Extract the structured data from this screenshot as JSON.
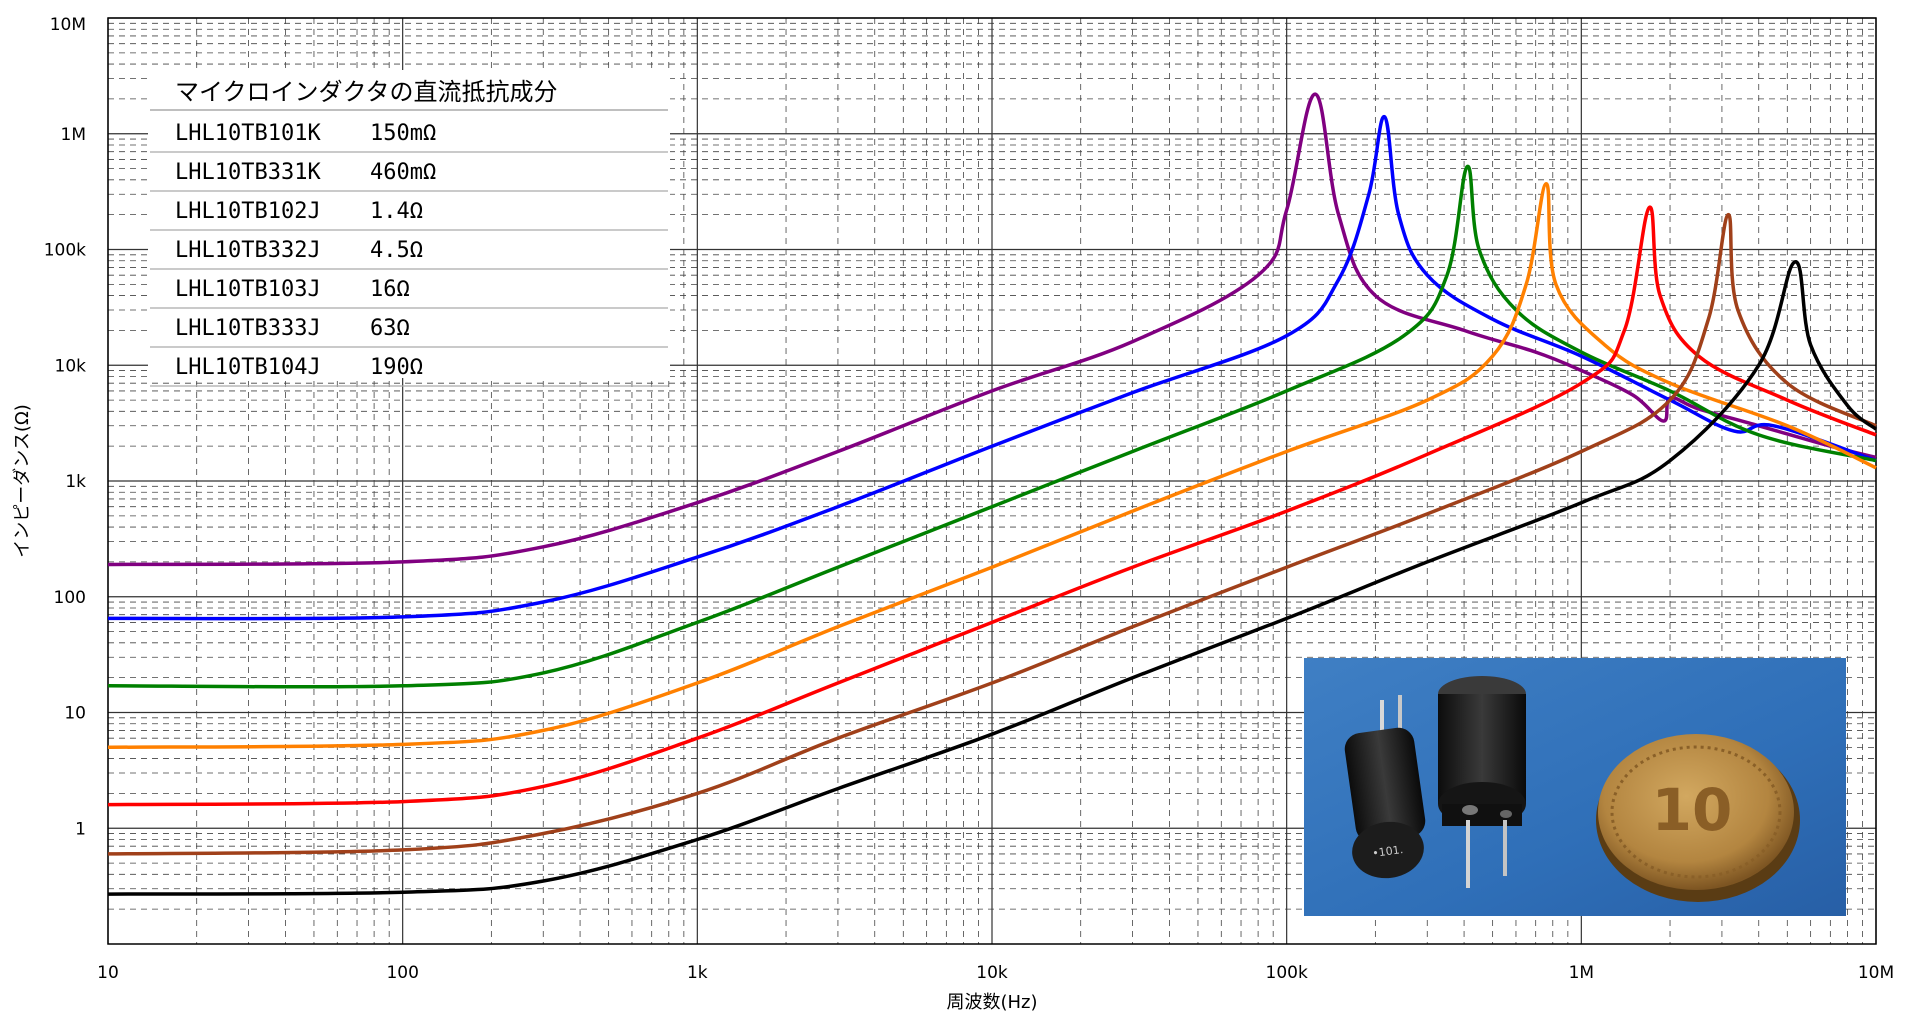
{
  "chart_data": {
    "type": "line",
    "title": "",
    "xlabel": "周波数(Hz)",
    "ylabel": "インピーダンス(Ω)",
    "x_scale": "log",
    "y_scale": "log",
    "xlim": [
      10,
      10000000
    ],
    "ylim": [
      0.1,
      10000000
    ],
    "x_ticks": [
      {
        "value": 10,
        "label": "10"
      },
      {
        "value": 100,
        "label": "100"
      },
      {
        "value": 1000,
        "label": "1k"
      },
      {
        "value": 10000,
        "label": "10k"
      },
      {
        "value": 100000,
        "label": "100k"
      },
      {
        "value": 1000000,
        "label": "1M"
      },
      {
        "value": 10000000,
        "label": "10M"
      }
    ],
    "y_ticks": [
      {
        "value": 1,
        "label": "1"
      },
      {
        "value": 10,
        "label": "10"
      },
      {
        "value": 100,
        "label": "100"
      },
      {
        "value": 1000,
        "label": "1k"
      },
      {
        "value": 10000,
        "label": "10k"
      },
      {
        "value": 100000,
        "label": "100k"
      },
      {
        "value": 1000000,
        "label": "1M"
      },
      {
        "value": 10000000,
        "label": "10M"
      }
    ],
    "grid": true,
    "legend": {
      "placement": "top-left",
      "title": "マイクロインダクタの直流抵抗成分",
      "rows": [
        {
          "part": "LHL10TB101K",
          "value": "150mΩ"
        },
        {
          "part": "LHL10TB331K",
          "value": "460mΩ"
        },
        {
          "part": "LHL10TB102J",
          "value": "1.4Ω"
        },
        {
          "part": "LHL10TB332J",
          "value": "4.5Ω"
        },
        {
          "part": "LHL10TB103J",
          "value": "16Ω"
        },
        {
          "part": "LHL10TB333J",
          "value": "63Ω"
        },
        {
          "part": "LHL10TB104J",
          "value": "190Ω"
        }
      ]
    },
    "series": [
      {
        "color": "#800080",
        "points": [
          [
            10,
            190
          ],
          [
            100,
            200
          ],
          [
            300,
            270
          ],
          [
            1000,
            650
          ],
          [
            3000,
            1800
          ],
          [
            10000,
            6000
          ],
          [
            30000,
            16000
          ],
          [
            80000,
            60000
          ],
          [
            100000,
            220000
          ],
          [
            125000,
            2200000
          ],
          [
            150000,
            200000
          ],
          [
            200000,
            40000
          ],
          [
            400000,
            20000
          ],
          [
            700000,
            13000
          ],
          [
            1000000,
            9000
          ],
          [
            1500000,
            5500
          ],
          [
            1900000,
            3300
          ],
          [
            2000000,
            5200
          ],
          [
            2500000,
            4200
          ],
          [
            4000000,
            3000
          ],
          [
            7000000,
            2000
          ],
          [
            10000000,
            1600
          ]
        ]
      },
      {
        "color": "#0000ff",
        "points": [
          [
            10,
            65
          ],
          [
            100,
            67
          ],
          [
            300,
            90
          ],
          [
            1000,
            220
          ],
          [
            3000,
            600
          ],
          [
            10000,
            2000
          ],
          [
            30000,
            5800
          ],
          [
            100000,
            18000
          ],
          [
            150000,
            55000
          ],
          [
            190000,
            300000
          ],
          [
            215000,
            1400000
          ],
          [
            240000,
            200000
          ],
          [
            300000,
            60000
          ],
          [
            500000,
            25000
          ],
          [
            1000000,
            12000
          ],
          [
            2000000,
            5000
          ],
          [
            3300000,
            2700
          ],
          [
            4500000,
            3000
          ],
          [
            10000000,
            1500
          ]
        ]
      },
      {
        "color": "#008000",
        "points": [
          [
            10,
            17
          ],
          [
            100,
            17
          ],
          [
            300,
            22
          ],
          [
            1000,
            60
          ],
          [
            3000,
            180
          ],
          [
            10000,
            600
          ],
          [
            30000,
            1800
          ],
          [
            100000,
            6000
          ],
          [
            250000,
            18000
          ],
          [
            350000,
            60000
          ],
          [
            410000,
            520000
          ],
          [
            450000,
            100000
          ],
          [
            600000,
            30000
          ],
          [
            1000000,
            13000
          ],
          [
            2000000,
            6000
          ],
          [
            4000000,
            2500
          ],
          [
            10000000,
            1500
          ]
        ]
      },
      {
        "color": "#ff8000",
        "points": [
          [
            10,
            5
          ],
          [
            100,
            5.3
          ],
          [
            300,
            7
          ],
          [
            1000,
            18
          ],
          [
            3000,
            55
          ],
          [
            10000,
            180
          ],
          [
            30000,
            550
          ],
          [
            100000,
            1800
          ],
          [
            300000,
            5000
          ],
          [
            500000,
            12000
          ],
          [
            650000,
            50000
          ],
          [
            760000,
            370000
          ],
          [
            820000,
            50000
          ],
          [
            1200000,
            15000
          ],
          [
            2000000,
            7000
          ],
          [
            5000000,
            3000
          ],
          [
            10000000,
            1300
          ]
        ]
      },
      {
        "color": "#ff0000",
        "points": [
          [
            10,
            1.6
          ],
          [
            100,
            1.7
          ],
          [
            300,
            2.3
          ],
          [
            1000,
            6
          ],
          [
            3000,
            18
          ],
          [
            10000,
            60
          ],
          [
            30000,
            180
          ],
          [
            100000,
            550
          ],
          [
            300000,
            1700
          ],
          [
            1000000,
            7000
          ],
          [
            1400000,
            20000
          ],
          [
            1700000,
            230000
          ],
          [
            1850000,
            40000
          ],
          [
            2500000,
            12000
          ],
          [
            5000000,
            5000
          ],
          [
            10000000,
            2500
          ]
        ]
      },
      {
        "color": "#a0401a",
        "points": [
          [
            10,
            0.6
          ],
          [
            100,
            0.65
          ],
          [
            300,
            0.9
          ],
          [
            1000,
            2
          ],
          [
            3000,
            6
          ],
          [
            10000,
            18
          ],
          [
            30000,
            55
          ],
          [
            100000,
            180
          ],
          [
            300000,
            520
          ],
          [
            1000000,
            1800
          ],
          [
            2000000,
            5000
          ],
          [
            2700000,
            25000
          ],
          [
            3150000,
            200000
          ],
          [
            3400000,
            30000
          ],
          [
            5000000,
            7000
          ],
          [
            10000000,
            3000
          ]
        ]
      },
      {
        "color": "#000000",
        "points": [
          [
            10,
            0.27
          ],
          [
            100,
            0.28
          ],
          [
            300,
            0.35
          ],
          [
            1000,
            0.8
          ],
          [
            3000,
            2.2
          ],
          [
            10000,
            6.5
          ],
          [
            30000,
            20
          ],
          [
            100000,
            65
          ],
          [
            300000,
            200
          ],
          [
            1000000,
            650
          ],
          [
            2000000,
            1500
          ],
          [
            4000000,
            10000
          ],
          [
            5300000,
            78000
          ],
          [
            6000000,
            15000
          ],
          [
            8000000,
            4500
          ],
          [
            10000000,
            2800
          ]
        ]
      }
    ]
  },
  "photo": {
    "coin_text": "10"
  }
}
